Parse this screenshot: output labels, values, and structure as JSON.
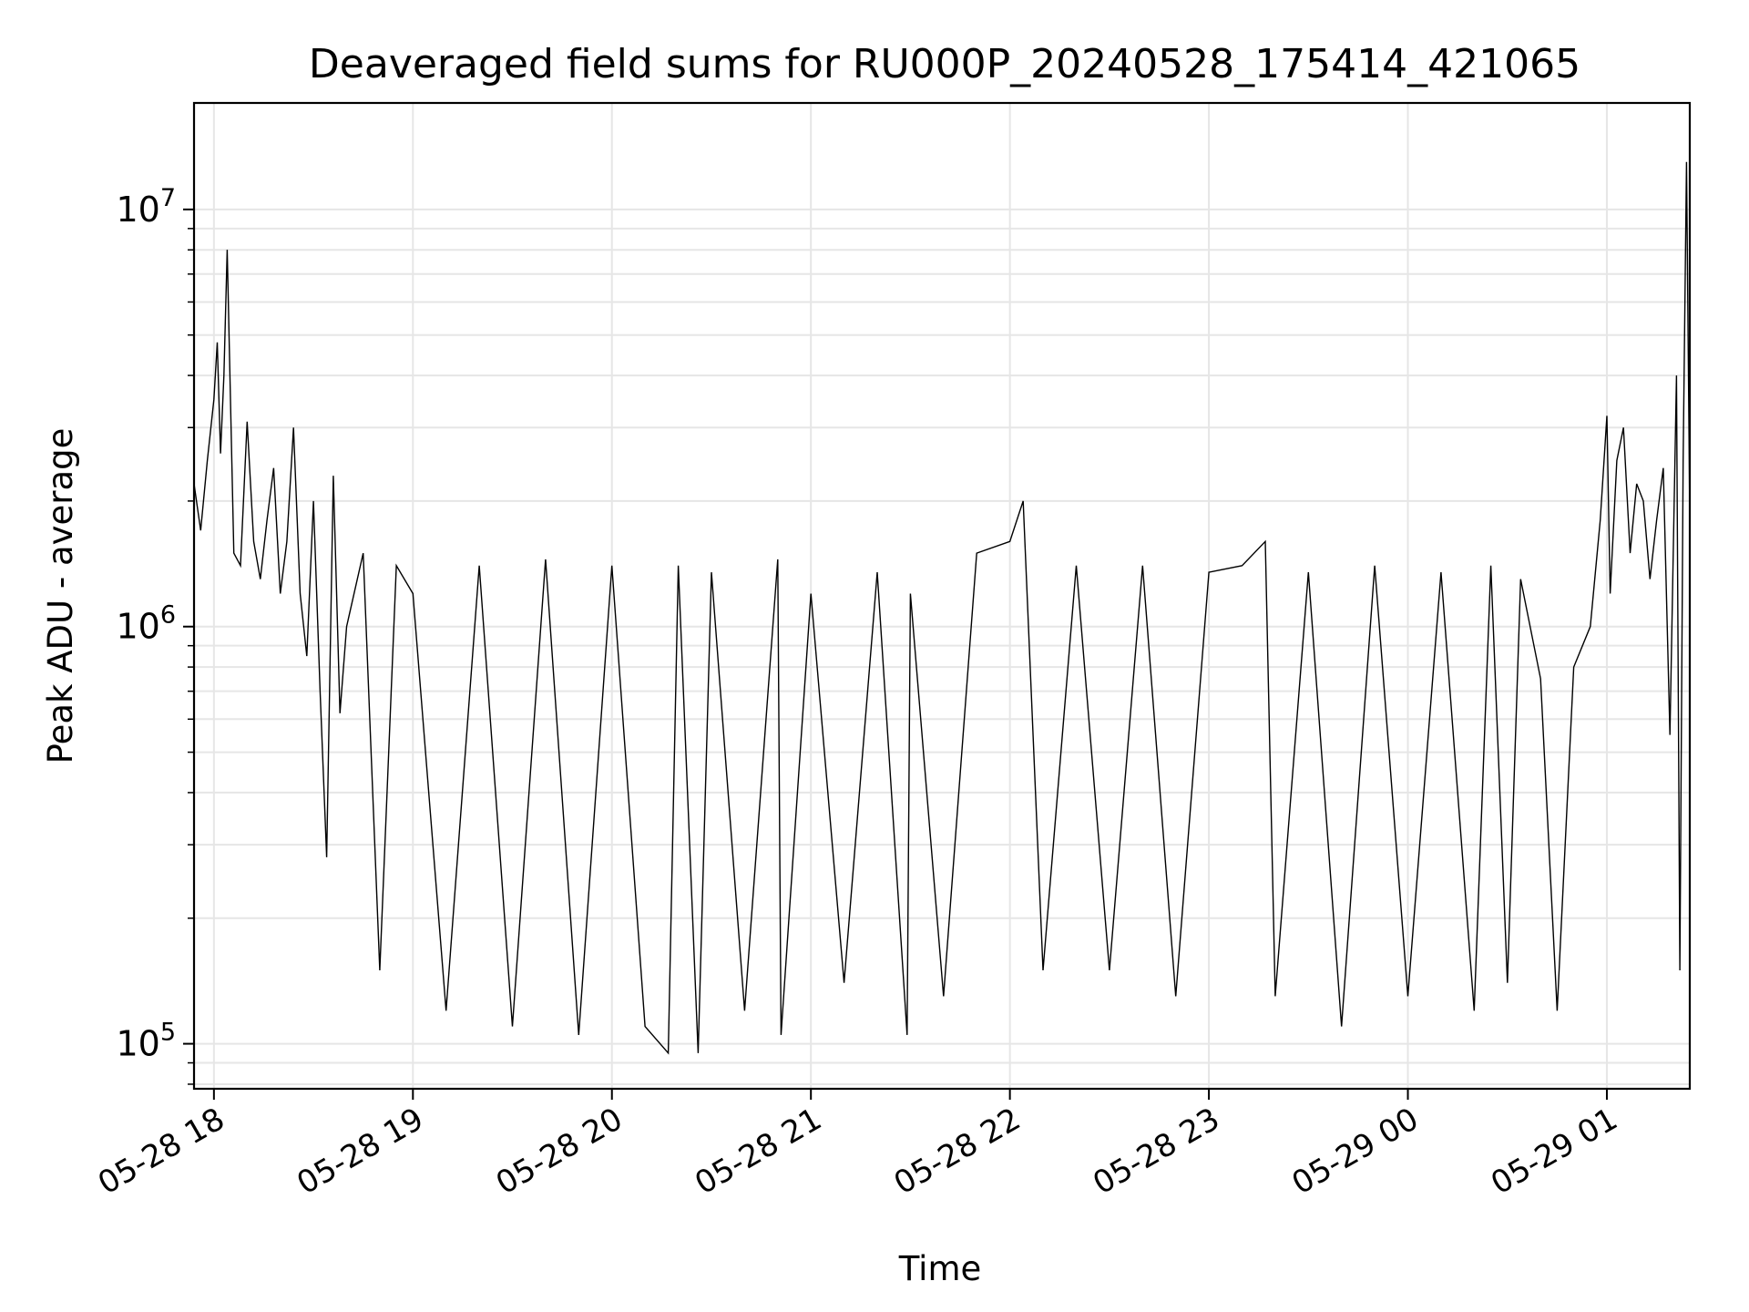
{
  "chart_data": {
    "type": "line",
    "title": "Deaveraged field sums for RU000P_20240528_175414_421065",
    "xlabel": "Time",
    "ylabel": "Peak ADU - average",
    "yscale": "log",
    "grid": true,
    "legend": "none",
    "line_color": "#000000",
    "grid_color": "#e6e6e6",
    "xlim": [
      "2024-05-28 17:54",
      "2024-05-29 01:25"
    ],
    "ylim": [
      78000,
      18000000
    ],
    "x_ticks": [
      {
        "t": "2024-05-28 18:00",
        "label": "05-28 18"
      },
      {
        "t": "2024-05-28 19:00",
        "label": "05-28 19"
      },
      {
        "t": "2024-05-28 20:00",
        "label": "05-28 20"
      },
      {
        "t": "2024-05-28 21:00",
        "label": "05-28 21"
      },
      {
        "t": "2024-05-28 22:00",
        "label": "05-28 22"
      },
      {
        "t": "2024-05-28 23:00",
        "label": "05-28 23"
      },
      {
        "t": "2024-05-29 00:00",
        "label": "05-29 00"
      },
      {
        "t": "2024-05-29 01:00",
        "label": "05-29 01"
      }
    ],
    "y_ticks": [
      {
        "value": 100000,
        "base": "10",
        "exp": "5"
      },
      {
        "value": 1000000,
        "base": "10",
        "exp": "6"
      },
      {
        "value": 10000000,
        "base": "10",
        "exp": "7"
      }
    ],
    "series": [
      {
        "x": [
          "2024-05-28 17:54",
          "2024-05-28 17:56",
          "2024-05-28 17:58",
          "2024-05-28 18:00",
          "2024-05-28 18:01",
          "2024-05-28 18:02",
          "2024-05-28 18:03",
          "2024-05-28 18:04",
          "2024-05-28 18:06",
          "2024-05-28 18:08",
          "2024-05-28 18:10",
          "2024-05-28 18:12",
          "2024-05-28 18:14",
          "2024-05-28 18:16",
          "2024-05-28 18:18",
          "2024-05-28 18:20",
          "2024-05-28 18:22",
          "2024-05-28 18:24",
          "2024-05-28 18:26",
          "2024-05-28 18:28",
          "2024-05-28 18:30",
          "2024-05-28 18:32",
          "2024-05-28 18:34",
          "2024-05-28 18:36",
          "2024-05-28 18:38",
          "2024-05-28 18:40",
          "2024-05-28 18:45",
          "2024-05-28 18:50",
          "2024-05-28 18:55",
          "2024-05-28 19:00",
          "2024-05-28 19:10",
          "2024-05-28 19:20",
          "2024-05-28 19:30",
          "2024-05-28 19:40",
          "2024-05-28 19:50",
          "2024-05-28 20:00",
          "2024-05-28 20:10",
          "2024-05-28 20:17",
          "2024-05-28 20:20",
          "2024-05-28 20:26",
          "2024-05-28 20:30",
          "2024-05-28 20:40",
          "2024-05-28 20:50",
          "2024-05-28 20:51",
          "2024-05-28 21:00",
          "2024-05-28 21:10",
          "2024-05-28 21:20",
          "2024-05-28 21:29",
          "2024-05-28 21:30",
          "2024-05-28 21:40",
          "2024-05-28 21:50",
          "2024-05-28 22:00",
          "2024-05-28 22:04",
          "2024-05-28 22:10",
          "2024-05-28 22:20",
          "2024-05-28 22:30",
          "2024-05-28 22:40",
          "2024-05-28 22:50",
          "2024-05-28 23:00",
          "2024-05-28 23:10",
          "2024-05-28 23:17",
          "2024-05-28 23:20",
          "2024-05-28 23:30",
          "2024-05-28 23:40",
          "2024-05-28 23:50",
          "2024-05-29 00:00",
          "2024-05-29 00:10",
          "2024-05-29 00:20",
          "2024-05-29 00:25",
          "2024-05-29 00:30",
          "2024-05-29 00:34",
          "2024-05-29 00:40",
          "2024-05-29 00:45",
          "2024-05-29 00:50",
          "2024-05-29 00:55",
          "2024-05-29 00:58",
          "2024-05-29 01:00",
          "2024-05-29 01:01",
          "2024-05-29 01:03",
          "2024-05-29 01:05",
          "2024-05-29 01:07",
          "2024-05-29 01:09",
          "2024-05-29 01:11",
          "2024-05-29 01:13",
          "2024-05-29 01:15",
          "2024-05-29 01:17",
          "2024-05-29 01:19",
          "2024-05-29 01:21",
          "2024-05-29 01:22",
          "2024-05-29 01:23",
          "2024-05-29 01:24",
          "2024-05-29 01:25"
        ],
        "y": [
          2200000,
          1700000,
          2500000,
          3500000,
          4800000,
          2600000,
          4000000,
          8000000,
          1500000,
          1400000,
          3100000,
          1600000,
          1300000,
          1800000,
          2400000,
          1200000,
          1600000,
          3000000,
          1200000,
          850000,
          2000000,
          700000,
          280000,
          2300000,
          620000,
          1000000,
          1500000,
          150000,
          1400000,
          1200000,
          120000,
          1400000,
          110000,
          1450000,
          105000,
          1400000,
          110000,
          95000,
          1400000,
          95000,
          1350000,
          120000,
          1450000,
          105000,
          1200000,
          140000,
          1350000,
          105000,
          1200000,
          130000,
          1500000,
          1600000,
          2000000,
          150000,
          1400000,
          150000,
          1400000,
          130000,
          1350000,
          1400000,
          1600000,
          130000,
          1350000,
          110000,
          1400000,
          130000,
          1350000,
          120000,
          1400000,
          140000,
          1300000,
          750000,
          120000,
          800000,
          1000000,
          1800000,
          3200000,
          1200000,
          2500000,
          3000000,
          1500000,
          2200000,
          2000000,
          1300000,
          1800000,
          2400000,
          550000,
          4000000,
          150000,
          2500000,
          13000000,
          1800000
        ]
      }
    ]
  }
}
